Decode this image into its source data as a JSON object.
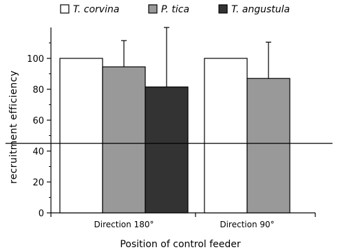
{
  "chart_data": {
    "type": "bar",
    "title": "",
    "xlabel": "Position of control feeder",
    "ylabel": "recruitment efficiency",
    "ylim": [
      0,
      120
    ],
    "yticks": [
      0,
      20,
      40,
      60,
      80,
      100
    ],
    "grid": false,
    "legend_position": "top",
    "reference_line": 45,
    "categories": [
      "Direction 180°",
      "Direction 90°"
    ],
    "series": [
      {
        "name": "T. corvina",
        "color": "#ffffff",
        "values": [
          100,
          100
        ],
        "errors": [
          null,
          null
        ]
      },
      {
        "name": "P. tica",
        "color": "#999999",
        "values": [
          94.5,
          87
        ],
        "errors": [
          111.5,
          110.5
        ]
      },
      {
        "name": "T. angustula",
        "color": "#333333",
        "values": [
          81.5,
          null
        ],
        "errors": [
          120,
          null
        ]
      }
    ]
  }
}
